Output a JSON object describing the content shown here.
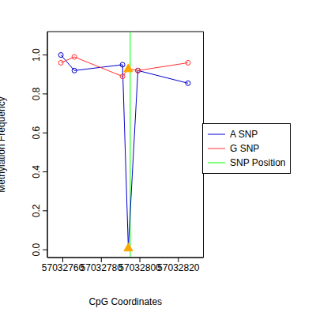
{
  "chart_data": {
    "type": "line",
    "x_label": "CpG Coordinates",
    "y_label": "Methylation Frequency",
    "x": [
      57032759,
      57032766,
      57032791,
      57032794,
      57032799,
      57032825
    ],
    "series": [
      {
        "name": "A SNP",
        "color": "#0000cd",
        "values": [
          1.0,
          0.92,
          0.95,
          0.01,
          0.92,
          0.855
        ],
        "marker": "circle"
      },
      {
        "name": "G SNP",
        "color": "#ff3030",
        "values": [
          0.96,
          0.99,
          0.89,
          0.93,
          0.92,
          0.96
        ],
        "marker": "circle"
      }
    ],
    "reference_line": {
      "name": "SNP Position",
      "color": "#00ff00",
      "x": 57032795
    },
    "xlim": [
      57032752,
      57032833
    ],
    "ylim": [
      -0.04,
      1.12
    ],
    "xticks": [
      57032760,
      57032780,
      57032800,
      57032820
    ],
    "yticks": [
      {
        "value": 0,
        "label": "0.0"
      },
      {
        "value": 0.2,
        "label": "0.2"
      },
      {
        "value": 0.4,
        "label": "0.4"
      },
      {
        "value": 0.6,
        "label": "0.6"
      },
      {
        "value": 0.8,
        "label": "0.8"
      },
      {
        "value": 1,
        "label": "1.0"
      }
    ],
    "legend": "right",
    "grid": false
  }
}
